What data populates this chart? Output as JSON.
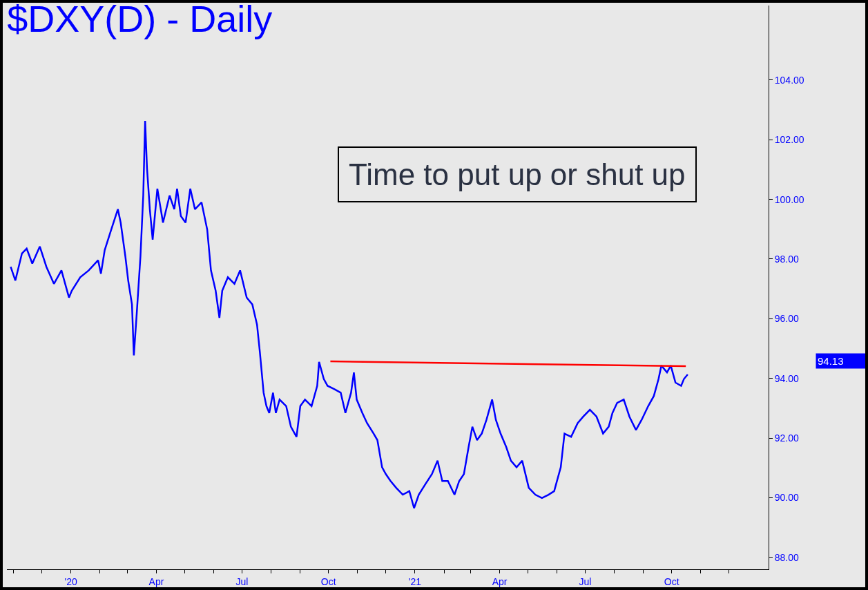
{
  "chart_data": {
    "type": "line",
    "title": "$DXY(D) - Daily",
    "annotations": [
      "Time to put up or shut up",
      "94.13"
    ],
    "xlim": [
      "2019-10-25",
      "2022-01-12"
    ],
    "xticks": [
      {
        "value": "2019-11-01",
        "label": null
      },
      {
        "value": "2019-12-01",
        "label": null
      },
      {
        "value": "2020-01-01",
        "label": "'20"
      },
      {
        "value": "2020-02-01",
        "label": null
      },
      {
        "value": "2020-03-01",
        "label": null
      },
      {
        "value": "2020-04-01",
        "label": "Apr"
      },
      {
        "value": "2020-05-01",
        "label": null
      },
      {
        "value": "2020-06-01",
        "label": null
      },
      {
        "value": "2020-07-01",
        "label": "Jul"
      },
      {
        "value": "2020-08-01",
        "label": null
      },
      {
        "value": "2020-09-01",
        "label": null
      },
      {
        "value": "2020-10-01",
        "label": "Oct"
      },
      {
        "value": "2020-11-01",
        "label": null
      },
      {
        "value": "2020-12-01",
        "label": null
      },
      {
        "value": "2021-01-01",
        "label": "'21"
      },
      {
        "value": "2021-02-01",
        "label": null
      },
      {
        "value": "2021-03-01",
        "label": null
      },
      {
        "value": "2021-04-01",
        "label": "Apr"
      },
      {
        "value": "2021-05-01",
        "label": null
      },
      {
        "value": "2021-06-01",
        "label": null
      },
      {
        "value": "2021-07-01",
        "label": "Jul"
      },
      {
        "value": "2021-08-01",
        "label": null
      },
      {
        "value": "2021-09-01",
        "label": null
      },
      {
        "value": "2021-10-01",
        "label": "Oct"
      },
      {
        "value": "2021-11-01",
        "label": null
      },
      {
        "value": "2021-12-01",
        "label": null
      }
    ],
    "ylim": [
      87.6,
      106.5
    ],
    "yticks": [
      {
        "value": 88,
        "label": "88.00"
      },
      {
        "value": 90,
        "label": "90.00"
      },
      {
        "value": 92,
        "label": "92.00"
      },
      {
        "value": 94,
        "label": "94.00"
      },
      {
        "value": 96,
        "label": "96.00"
      },
      {
        "value": 98,
        "label": "98.00"
      },
      {
        "value": 100,
        "label": "100.00"
      },
      {
        "value": 102,
        "label": "102.00"
      },
      {
        "value": 104,
        "label": "104.00"
      }
    ],
    "grid": false,
    "series": [
      {
        "color": "#0000ff",
        "x": [
          "2019-10-29",
          "2019-11-03",
          "2019-11-10",
          "2019-11-15",
          "2019-11-21",
          "2019-11-29",
          "2019-12-06",
          "2019-12-14",
          "2019-12-22",
          "2019-12-30",
          "2020-01-02",
          "2020-01-11",
          "2020-01-20",
          "2020-01-30",
          "2020-02-02",
          "2020-02-06",
          "2020-02-13",
          "2020-02-20",
          "2020-02-23",
          "2020-02-28",
          "2020-03-02",
          "2020-03-06",
          "2020-03-08",
          "2020-03-11",
          "2020-03-15",
          "2020-03-18",
          "2020-03-20",
          "2020-03-22",
          "2020-03-25",
          "2020-03-28",
          "2020-04-02",
          "2020-04-08",
          "2020-04-15",
          "2020-04-20",
          "2020-04-23",
          "2020-04-27",
          "2020-05-02",
          "2020-05-07",
          "2020-05-12",
          "2020-05-19",
          "2020-05-25",
          "2020-05-29",
          "2020-06-03",
          "2020-06-07",
          "2020-06-10",
          "2020-06-16",
          "2020-06-23",
          "2020-06-29",
          "2020-07-06",
          "2020-07-12",
          "2020-07-17",
          "2020-07-20",
          "2020-07-24",
          "2020-07-27",
          "2020-07-30",
          "2020-08-03",
          "2020-08-06",
          "2020-08-10",
          "2020-08-17",
          "2020-08-22",
          "2020-08-28",
          "2020-09-01",
          "2020-09-06",
          "2020-09-13",
          "2020-09-19",
          "2020-09-21",
          "2020-09-26",
          "2020-09-30",
          "2020-10-07",
          "2020-10-14",
          "2020-10-19",
          "2020-10-25",
          "2020-10-28",
          "2020-10-31",
          "2020-11-06",
          "2020-11-11",
          "2020-11-18",
          "2020-11-22",
          "2020-11-27",
          "2020-12-01",
          "2020-12-06",
          "2020-12-12",
          "2020-12-19",
          "2020-12-26",
          "2020-12-31",
          "2021-01-05",
          "2021-01-12",
          "2021-01-19",
          "2021-01-25",
          "2021-01-30",
          "2021-02-05",
          "2021-02-12",
          "2021-02-17",
          "2021-02-22",
          "2021-02-27",
          "2021-03-03",
          "2021-03-08",
          "2021-03-13",
          "2021-03-18",
          "2021-03-24",
          "2021-03-28",
          "2021-04-02",
          "2021-04-08",
          "2021-04-13",
          "2021-04-19",
          "2021-04-25",
          "2021-05-02",
          "2021-05-09",
          "2021-05-16",
          "2021-05-23",
          "2021-05-29",
          "2021-06-05",
          "2021-06-09",
          "2021-06-16",
          "2021-06-23",
          "2021-06-29",
          "2021-07-06",
          "2021-07-13",
          "2021-07-20",
          "2021-07-26",
          "2021-07-30",
          "2021-08-04",
          "2021-08-11",
          "2021-08-17",
          "2021-08-24",
          "2021-08-30",
          "2021-09-06",
          "2021-09-12",
          "2021-09-17",
          "2021-09-20",
          "2021-09-26",
          "2021-09-30",
          "2021-10-05",
          "2021-10-11",
          "2021-10-14",
          "2021-10-18"
        ],
        "values": [
          97.74,
          97.28,
          98.19,
          98.35,
          97.85,
          98.42,
          97.74,
          97.17,
          97.62,
          96.71,
          96.94,
          97.39,
          97.62,
          97.96,
          97.51,
          98.3,
          98.99,
          99.67,
          99.22,
          98.08,
          97.28,
          96.48,
          94.77,
          96.14,
          98.08,
          100.13,
          102.63,
          101.04,
          99.67,
          98.65,
          100.36,
          99.22,
          100.13,
          99.67,
          100.36,
          99.44,
          99.22,
          100.36,
          99.67,
          99.9,
          98.99,
          97.62,
          96.94,
          96.03,
          96.94,
          97.39,
          97.17,
          97.62,
          96.71,
          96.48,
          95.8,
          94.89,
          93.52,
          93.07,
          92.84,
          93.52,
          92.84,
          93.29,
          93.07,
          92.38,
          92.04,
          93.07,
          93.29,
          93.07,
          93.75,
          94.55,
          93.98,
          93.75,
          93.64,
          93.52,
          92.84,
          93.52,
          94.2,
          93.29,
          92.84,
          92.5,
          92.15,
          91.93,
          91.02,
          90.79,
          90.56,
          90.33,
          90.1,
          90.22,
          89.65,
          90.1,
          90.45,
          90.79,
          91.24,
          90.56,
          90.56,
          90.1,
          90.56,
          90.79,
          91.7,
          92.38,
          91.93,
          92.15,
          92.61,
          93.29,
          92.61,
          92.15,
          91.7,
          91.24,
          91.02,
          91.24,
          90.33,
          90.1,
          89.99,
          90.1,
          90.22,
          91.02,
          92.15,
          92.04,
          92.5,
          92.72,
          92.95,
          92.72,
          92.15,
          92.38,
          92.84,
          93.18,
          93.29,
          92.72,
          92.27,
          92.61,
          93.07,
          93.41,
          93.98,
          94.43,
          94.2,
          94.43,
          93.86,
          93.75,
          93.98,
          94.13
        ]
      },
      {
        "color": "#ff0000",
        "x": [
          "2020-10-03",
          "2021-10-16"
        ],
        "values": [
          94.57,
          94.41
        ]
      }
    ]
  }
}
